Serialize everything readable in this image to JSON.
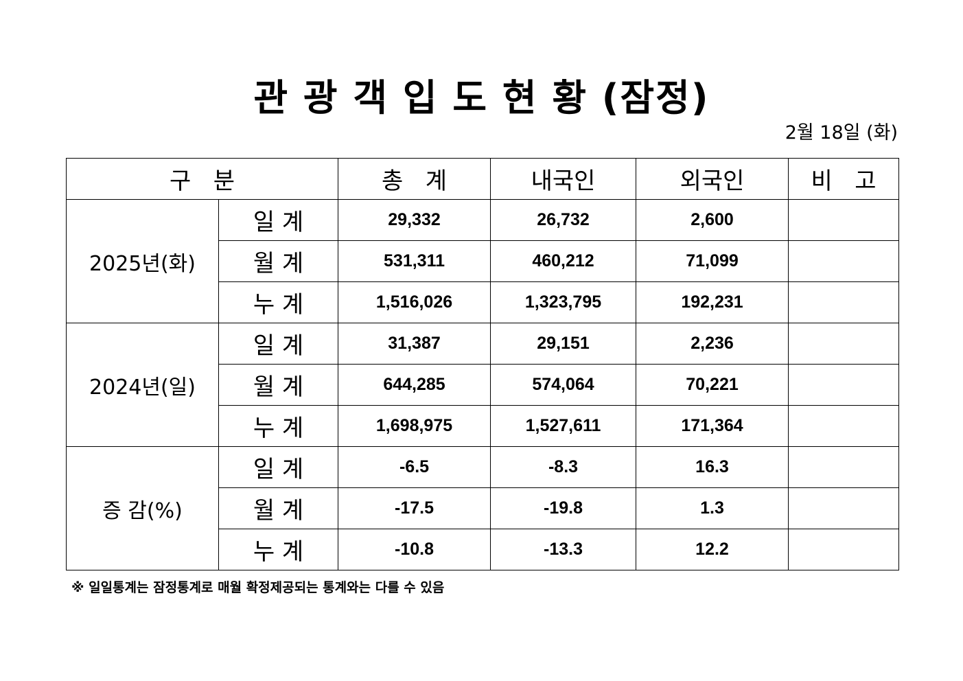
{
  "title": "관 광 객 입 도 현 황 (잠정)",
  "date": "2월 18일 (화)",
  "header": {
    "category": "구   분",
    "total": "총   계",
    "domestic": "내국인",
    "foreign": "외국인",
    "remarks": "비   고"
  },
  "groups": [
    {
      "label": "2025년(화)",
      "rows": [
        {
          "type": "일 계",
          "total": "29,332",
          "domestic": "26,732",
          "foreign": "2,600",
          "remarks": ""
        },
        {
          "type": "월 계",
          "total": "531,311",
          "domestic": "460,212",
          "foreign": "71,099",
          "remarks": ""
        },
        {
          "type": "누 계",
          "total": "1,516,026",
          "domestic": "1,323,795",
          "foreign": "192,231",
          "remarks": ""
        }
      ]
    },
    {
      "label": "2024년(일)",
      "rows": [
        {
          "type": "일 계",
          "total": "31,387",
          "domestic": "29,151",
          "foreign": "2,236",
          "remarks": ""
        },
        {
          "type": "월 계",
          "total": "644,285",
          "domestic": "574,064",
          "foreign": "70,221",
          "remarks": ""
        },
        {
          "type": "누 계",
          "total": "1,698,975",
          "domestic": "1,527,611",
          "foreign": "171,364",
          "remarks": ""
        }
      ]
    },
    {
      "label": "증 감(%)",
      "rows": [
        {
          "type": "일 계",
          "total": "-6.5",
          "domestic": "-8.3",
          "foreign": "16.3",
          "remarks": ""
        },
        {
          "type": "월 계",
          "total": "-17.5",
          "domestic": "-19.8",
          "foreign": "1.3",
          "remarks": ""
        },
        {
          "type": "누 계",
          "total": "-10.8",
          "domestic": "-13.3",
          "foreign": "12.2",
          "remarks": ""
        }
      ]
    }
  ],
  "footnote": "※ 일일통계는 잠정통계로 매월 확정제공되는 통계와는 다를 수 있음"
}
